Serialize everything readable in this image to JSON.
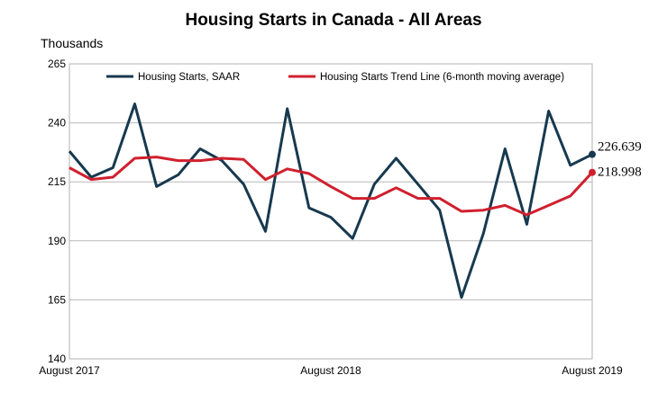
{
  "chart_data": {
    "type": "line",
    "title": "Housing Starts in Canada - All Areas",
    "ylabel": "Thousands",
    "ylim": [
      140,
      265
    ],
    "yticks": [
      "140",
      "165",
      "190",
      "215",
      "240",
      "265"
    ],
    "x_tick_labels": [
      {
        "index": 0,
        "label": "August 2017"
      },
      {
        "index": 12,
        "label": "August 2018"
      },
      {
        "index": 24,
        "label": "August 2019"
      }
    ],
    "grid": true,
    "legend_position": "top",
    "colors": {
      "series_1": "#17394f",
      "series_2": "#d0202e"
    },
    "series": [
      {
        "name": "Housing Starts, SAAR",
        "values": [
          228,
          217,
          221,
          248,
          213,
          218,
          229,
          224,
          214,
          194,
          246,
          204,
          200,
          191,
          214,
          225,
          214,
          203,
          166,
          193,
          229,
          197,
          245,
          222,
          226.639
        ],
        "end_label": "226.639"
      },
      {
        "name": "Housing Starts Trend Line (6-month moving average)",
        "values": [
          221,
          216,
          217,
          225,
          225.5,
          224,
          224,
          225,
          224.5,
          216,
          220.5,
          218.5,
          213,
          208,
          208,
          212.5,
          208,
          208,
          202.5,
          203,
          205,
          201,
          205,
          209,
          218.998
        ],
        "end_label": "218.998"
      }
    ]
  }
}
